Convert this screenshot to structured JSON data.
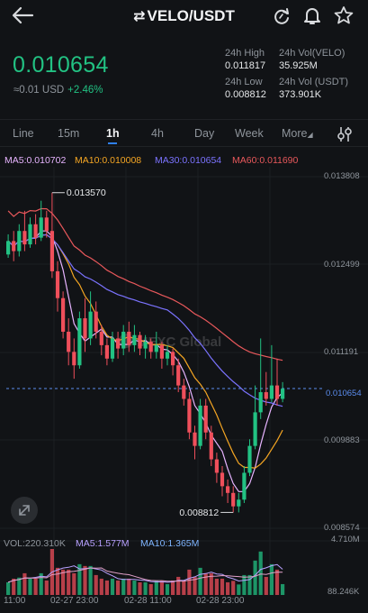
{
  "header": {
    "title": "VELO/USDT",
    "back_icon": "arrow-left-icon",
    "actions": [
      "refresh-icon",
      "bell-icon",
      "star-icon"
    ]
  },
  "price": {
    "last": "0.010654",
    "usd": "≈0.01 USD",
    "change": "+2.46%",
    "color_up": "#22c283",
    "color_down": "#ef4f5b"
  },
  "stats": {
    "high_label": "24h High",
    "high": "0.011817",
    "low_label": "24h Low",
    "low": "0.008812",
    "vol_base_label": "24h Vol(VELO)",
    "vol_base": "35.925M",
    "vol_quote_label": "24h Vol (USDT)",
    "vol_quote": "373.901K"
  },
  "tabs": {
    "line": "Line",
    "m15": "15m",
    "h1": "1h",
    "h4": "4h",
    "day": "Day",
    "week": "Week",
    "more": "More",
    "active": "1h"
  },
  "ma_legend": {
    "ma5": "MA5:0.010702",
    "ma10": "MA10:0.010008",
    "ma30": "MA30:0.010654",
    "ma60": "MA60:0.011690"
  },
  "y_axis": [
    "0.013808",
    "0.012499",
    "0.011191",
    "0.009883",
    "0.008574"
  ],
  "current_price_tag": "0.010654",
  "annotations": {
    "max": "0.013570",
    "min": "0.008812"
  },
  "watermark": "MEXC Global",
  "volume": {
    "label": "VOL:220.310K",
    "ma5": "MA5:1.577M",
    "ma10": "MA10:1.365M",
    "axis_top": "4.710M",
    "axis_bottom": "88.246K"
  },
  "time_axis": [
    "11:00",
    "02-27 23:00",
    "02-28 11:00",
    "02-28 23:00"
  ],
  "colors": {
    "ma5": "#e7b4ff",
    "ma10": "#f5a623",
    "ma30": "#7b73ff",
    "ma60": "#e8585b",
    "vol_ma5": "#b8a1ff",
    "vol_ma10": "#e0a0c8"
  },
  "chart_data": {
    "type": "candlestick",
    "ylim": [
      0.008574,
      0.013808
    ],
    "candles": [
      [
        0.01265,
        0.01285,
        0.0126,
        0.01295
      ],
      [
        0.01285,
        0.0127,
        0.01255,
        0.013
      ],
      [
        0.0127,
        0.013,
        0.01262,
        0.0131
      ],
      [
        0.013,
        0.0128,
        0.0127,
        0.0133
      ],
      [
        0.0128,
        0.0131,
        0.01275,
        0.0132
      ],
      [
        0.0131,
        0.0129,
        0.0128,
        0.01325
      ],
      [
        0.0129,
        0.0132,
        0.01285,
        0.01345
      ],
      [
        0.0132,
        0.013,
        0.0129,
        0.0133
      ],
      [
        0.013,
        0.0124,
        0.0123,
        0.01357
      ],
      [
        0.0124,
        0.012,
        0.0118,
        0.01255
      ],
      [
        0.012,
        0.0115,
        0.0114,
        0.0121
      ],
      [
        0.0115,
        0.0112,
        0.011,
        0.0117
      ],
      [
        0.0112,
        0.011,
        0.0108,
        0.0114
      ],
      [
        0.011,
        0.0117,
        0.01095,
        0.0118
      ],
      [
        0.0117,
        0.0114,
        0.0112,
        0.012
      ],
      [
        0.0114,
        0.0118,
        0.0113,
        0.0121
      ],
      [
        0.0118,
        0.0115,
        0.0114,
        0.01195
      ],
      [
        0.0115,
        0.0113,
        0.01115,
        0.0116
      ],
      [
        0.0113,
        0.0111,
        0.011,
        0.0114
      ],
      [
        0.0111,
        0.0114,
        0.01105,
        0.0115
      ],
      [
        0.0114,
        0.01125,
        0.0111,
        0.0115
      ],
      [
        0.01125,
        0.0115,
        0.01115,
        0.0116
      ],
      [
        0.0115,
        0.0113,
        0.0112,
        0.01165
      ],
      [
        0.0113,
        0.01145,
        0.0112,
        0.0116
      ],
      [
        0.01145,
        0.01125,
        0.01115,
        0.0115
      ],
      [
        0.01125,
        0.01135,
        0.0111,
        0.01145
      ],
      [
        0.01135,
        0.0112,
        0.0111,
        0.0114
      ],
      [
        0.0112,
        0.0113,
        0.0111,
        0.0115
      ],
      [
        0.0113,
        0.0111,
        0.01095,
        0.01135
      ],
      [
        0.0111,
        0.0112,
        0.011,
        0.0113
      ],
      [
        0.0112,
        0.011,
        0.01085,
        0.01125
      ],
      [
        0.011,
        0.0107,
        0.0106,
        0.0111
      ],
      [
        0.0107,
        0.0105,
        0.0104,
        0.0108
      ],
      [
        0.0105,
        0.01,
        0.0099,
        0.0106
      ],
      [
        0.01,
        0.0098,
        0.0096,
        0.0101
      ],
      [
        0.0098,
        0.0104,
        0.00975,
        0.0105
      ],
      [
        0.0104,
        0.01,
        0.0099,
        0.0105
      ],
      [
        0.01,
        0.0096,
        0.0095,
        0.0101
      ],
      [
        0.0096,
        0.0094,
        0.00925,
        0.0097
      ],
      [
        0.0094,
        0.0092,
        0.00905,
        0.0095
      ],
      [
        0.0092,
        0.0091,
        0.00895,
        0.0093
      ],
      [
        0.0091,
        0.0089,
        0.00881,
        0.0092
      ],
      [
        0.0089,
        0.009,
        0.00881,
        0.0091
      ],
      [
        0.009,
        0.0094,
        0.00895,
        0.0095
      ],
      [
        0.0094,
        0.0098,
        0.00935,
        0.0099
      ],
      [
        0.0098,
        0.0103,
        0.00975,
        0.0107
      ],
      [
        0.0103,
        0.0106,
        0.0102,
        0.0114
      ],
      [
        0.0106,
        0.0105,
        0.0104,
        0.0109
      ],
      [
        0.0105,
        0.0107,
        0.01045,
        0.0113
      ],
      [
        0.0107,
        0.0105,
        0.0104,
        0.0111
      ],
      [
        0.0105,
        0.01065,
        0.01045,
        0.01075
      ]
    ]
  }
}
